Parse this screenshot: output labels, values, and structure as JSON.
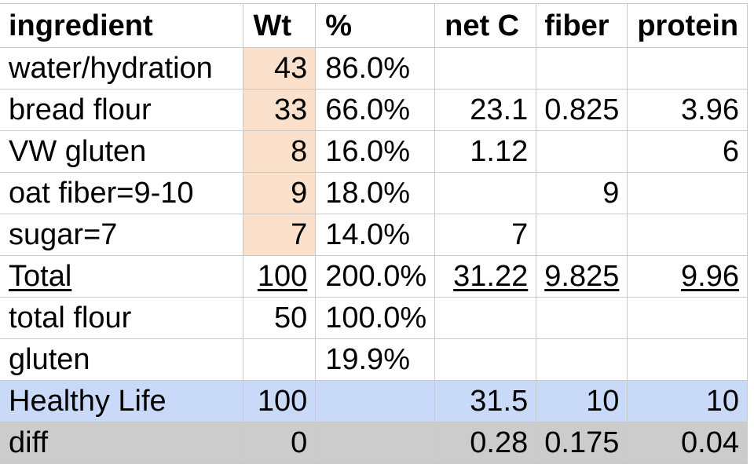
{
  "headers": [
    "ingredient",
    "Wt",
    "%",
    "net C",
    "fiber",
    "protein"
  ],
  "rows": [
    {
      "ingredient": "water/hydration",
      "wt": "43",
      "pct": "86.0%",
      "netc": "",
      "fiber": "",
      "protein": ""
    },
    {
      "ingredient": "bread flour",
      "wt": "33",
      "pct": "66.0%",
      "netc": "23.1",
      "fiber": "0.825",
      "protein": "3.96"
    },
    {
      "ingredient": "VW gluten",
      "wt": "8",
      "pct": "16.0%",
      "netc": "1.12",
      "fiber": "",
      "protein": "6"
    },
    {
      "ingredient": "oat fiber=9-10",
      "wt": "9",
      "pct": "18.0%",
      "netc": "",
      "fiber": "9",
      "protein": ""
    },
    {
      "ingredient": "sugar=7",
      "wt": "7",
      "pct": "14.0%",
      "netc": "7",
      "fiber": "",
      "protein": ""
    }
  ],
  "total": {
    "ingredient": "Total",
    "wt": "100",
    "pct": "200.0%",
    "netc": "31.22",
    "fiber": "9.825",
    "protein": "9.96"
  },
  "total_flour": {
    "ingredient": "total flour",
    "wt": "50",
    "pct": "100.0%"
  },
  "gluten": {
    "ingredient": "gluten",
    "pct": "19.9%"
  },
  "healthy": {
    "ingredient": "Healthy Life",
    "wt": "100",
    "netc": "31.5",
    "fiber": "10",
    "protein": "10"
  },
  "diff": {
    "ingredient": "diff",
    "wt": "0",
    "netc": "0.28",
    "fiber": "0.175",
    "protein": "0.04"
  },
  "colors": {
    "wt_highlight": "#fbe1cb",
    "healthy_row": "#c9daf8",
    "diff_row": "#cccccc",
    "gridline": "#c9c9c9"
  }
}
